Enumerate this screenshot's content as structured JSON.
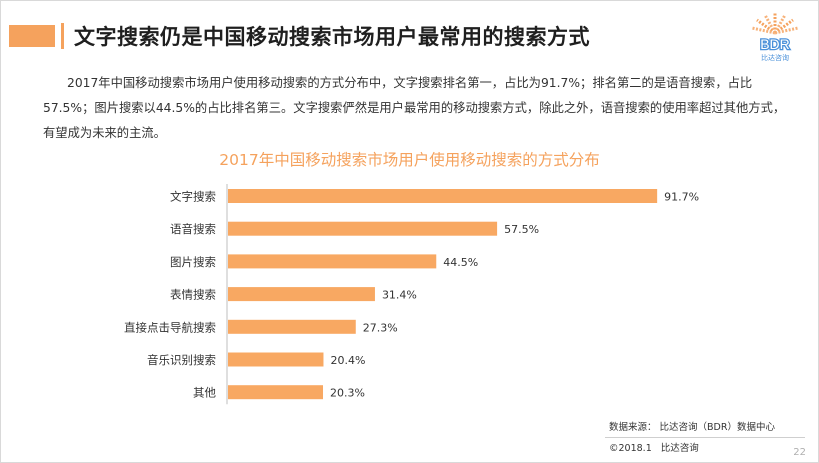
{
  "header": {
    "title": "文字搜索仍是中国移动搜索市场用户最常用的搜索方式",
    "accent_color": "#f5a25d"
  },
  "logo": {
    "text": "BDR",
    "subtitle": "比达咨询",
    "color": "#4a90d9",
    "accent_color": "#f5a25d"
  },
  "description": "2017年中国移动搜索市场用户使用移动搜索的方式分布中，文字搜索排名第一，占比为91.7%；排名第二的是语音搜索，占比57.5%；图片搜索以44.5%的占比排名第三。文字搜索俨然是用户最常用的移动搜索方式，除此之外，语音搜索的使用率超过其他方式，有望成为未来的主流。",
  "chart_data": {
    "type": "bar",
    "orientation": "horizontal",
    "title": "2017年中国移动搜索市场用户使用移动搜索的方式分布",
    "categories": [
      "文字搜索",
      "语音搜索",
      "图片搜索",
      "表情搜索",
      "直接点击导航搜索",
      "音乐识别搜索",
      "其他"
    ],
    "values": [
      91.7,
      57.5,
      44.5,
      31.4,
      27.3,
      20.4,
      20.3
    ],
    "value_labels": [
      "91.7%",
      "57.5%",
      "44.5%",
      "31.4%",
      "27.3%",
      "20.4%",
      "20.3%"
    ],
    "unit": "%",
    "xlim": [
      0,
      100
    ],
    "bar_color": "#f8a862",
    "axis_color": "#bfbfbf",
    "grid": false,
    "legend": "none"
  },
  "footer": {
    "source": "数据来源：  比达咨询（BDR）数据中心",
    "copyright": "©2018.1",
    "copyright_org": "比达咨询",
    "page_number": "22"
  }
}
